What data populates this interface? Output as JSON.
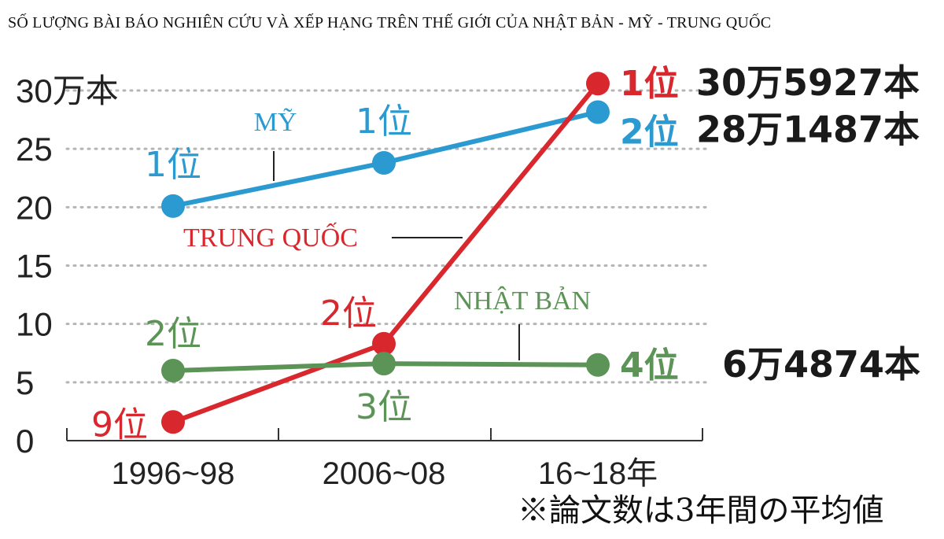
{
  "title": "SỐ LƯỢNG BÀI BÁO NGHIÊN CỨU VÀ XẾP HẠNG TRÊN THẾ GIỚI CỦA NHẬT BẢN - MỸ - TRUNG QUỐC",
  "note": "※論文数は3年間の平均値",
  "colors": {
    "usa": "#2b9ad0",
    "china": "#d9272e",
    "japan": "#5b9456"
  },
  "chart_data": {
    "type": "line",
    "categories": [
      "1996~98",
      "2006~08",
      "16~18年"
    ],
    "y_tick_labels": [
      "0",
      "5",
      "10",
      "15",
      "20",
      "25",
      "30万本"
    ],
    "ylim": [
      0,
      30
    ],
    "grid": true,
    "series": [
      {
        "name": "MỸ",
        "values": [
          20.1,
          23.8,
          28.1487
        ],
        "ranks": [
          "1位",
          "1位",
          "2位"
        ],
        "total": "28万1487本"
      },
      {
        "name": "TRUNG QUỐC",
        "values": [
          1.6,
          8.3,
          30.5927
        ],
        "ranks": [
          "9位",
          "2位",
          "1位"
        ],
        "total": "30万5927本"
      },
      {
        "name": "NHẬT BẢN",
        "values": [
          6.0,
          6.6,
          6.4874
        ],
        "ranks": [
          "2位",
          "3位",
          "4位"
        ],
        "total": "6万4874本"
      }
    ]
  }
}
